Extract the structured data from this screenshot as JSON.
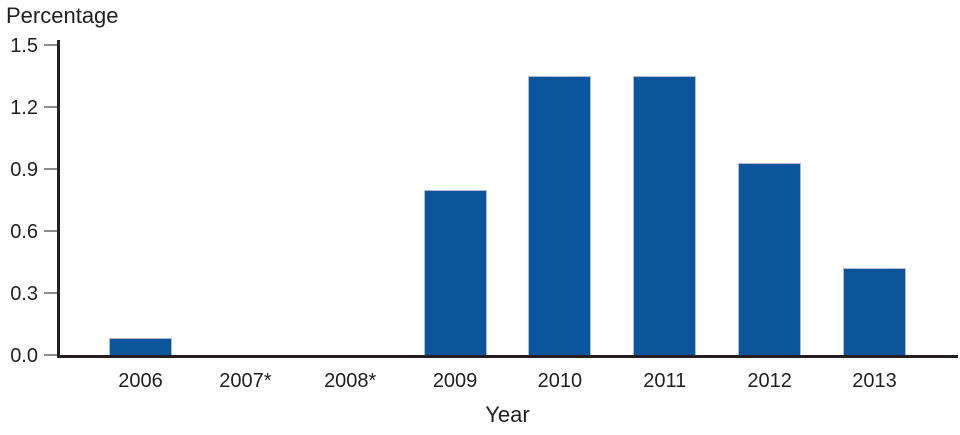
{
  "chart_data": {
    "type": "bar",
    "title": "",
    "ylabel": "Percentage",
    "xlabel": "Year",
    "categories": [
      "2006",
      "2007*",
      "2008*",
      "2009",
      "2010",
      "2011",
      "2012",
      "2013"
    ],
    "values": [
      0.08,
      0,
      0,
      0.8,
      1.35,
      1.35,
      0.93,
      0.42
    ],
    "ylim": [
      0,
      1.5
    ],
    "yticks": [
      0,
      0.3,
      0.6,
      0.9,
      1.2,
      1.5
    ],
    "ytick_labels": [
      "0.0",
      "0.3",
      "0.6",
      "0.9",
      "1.2",
      "1.5"
    ],
    "grid": false,
    "legend": null,
    "colors": {
      "bar_fill": "#0a559b",
      "bar_border": "#b6bac9",
      "axis": "#231f20",
      "tick_mark": "#8b8b8b",
      "text": "#231f20"
    }
  }
}
